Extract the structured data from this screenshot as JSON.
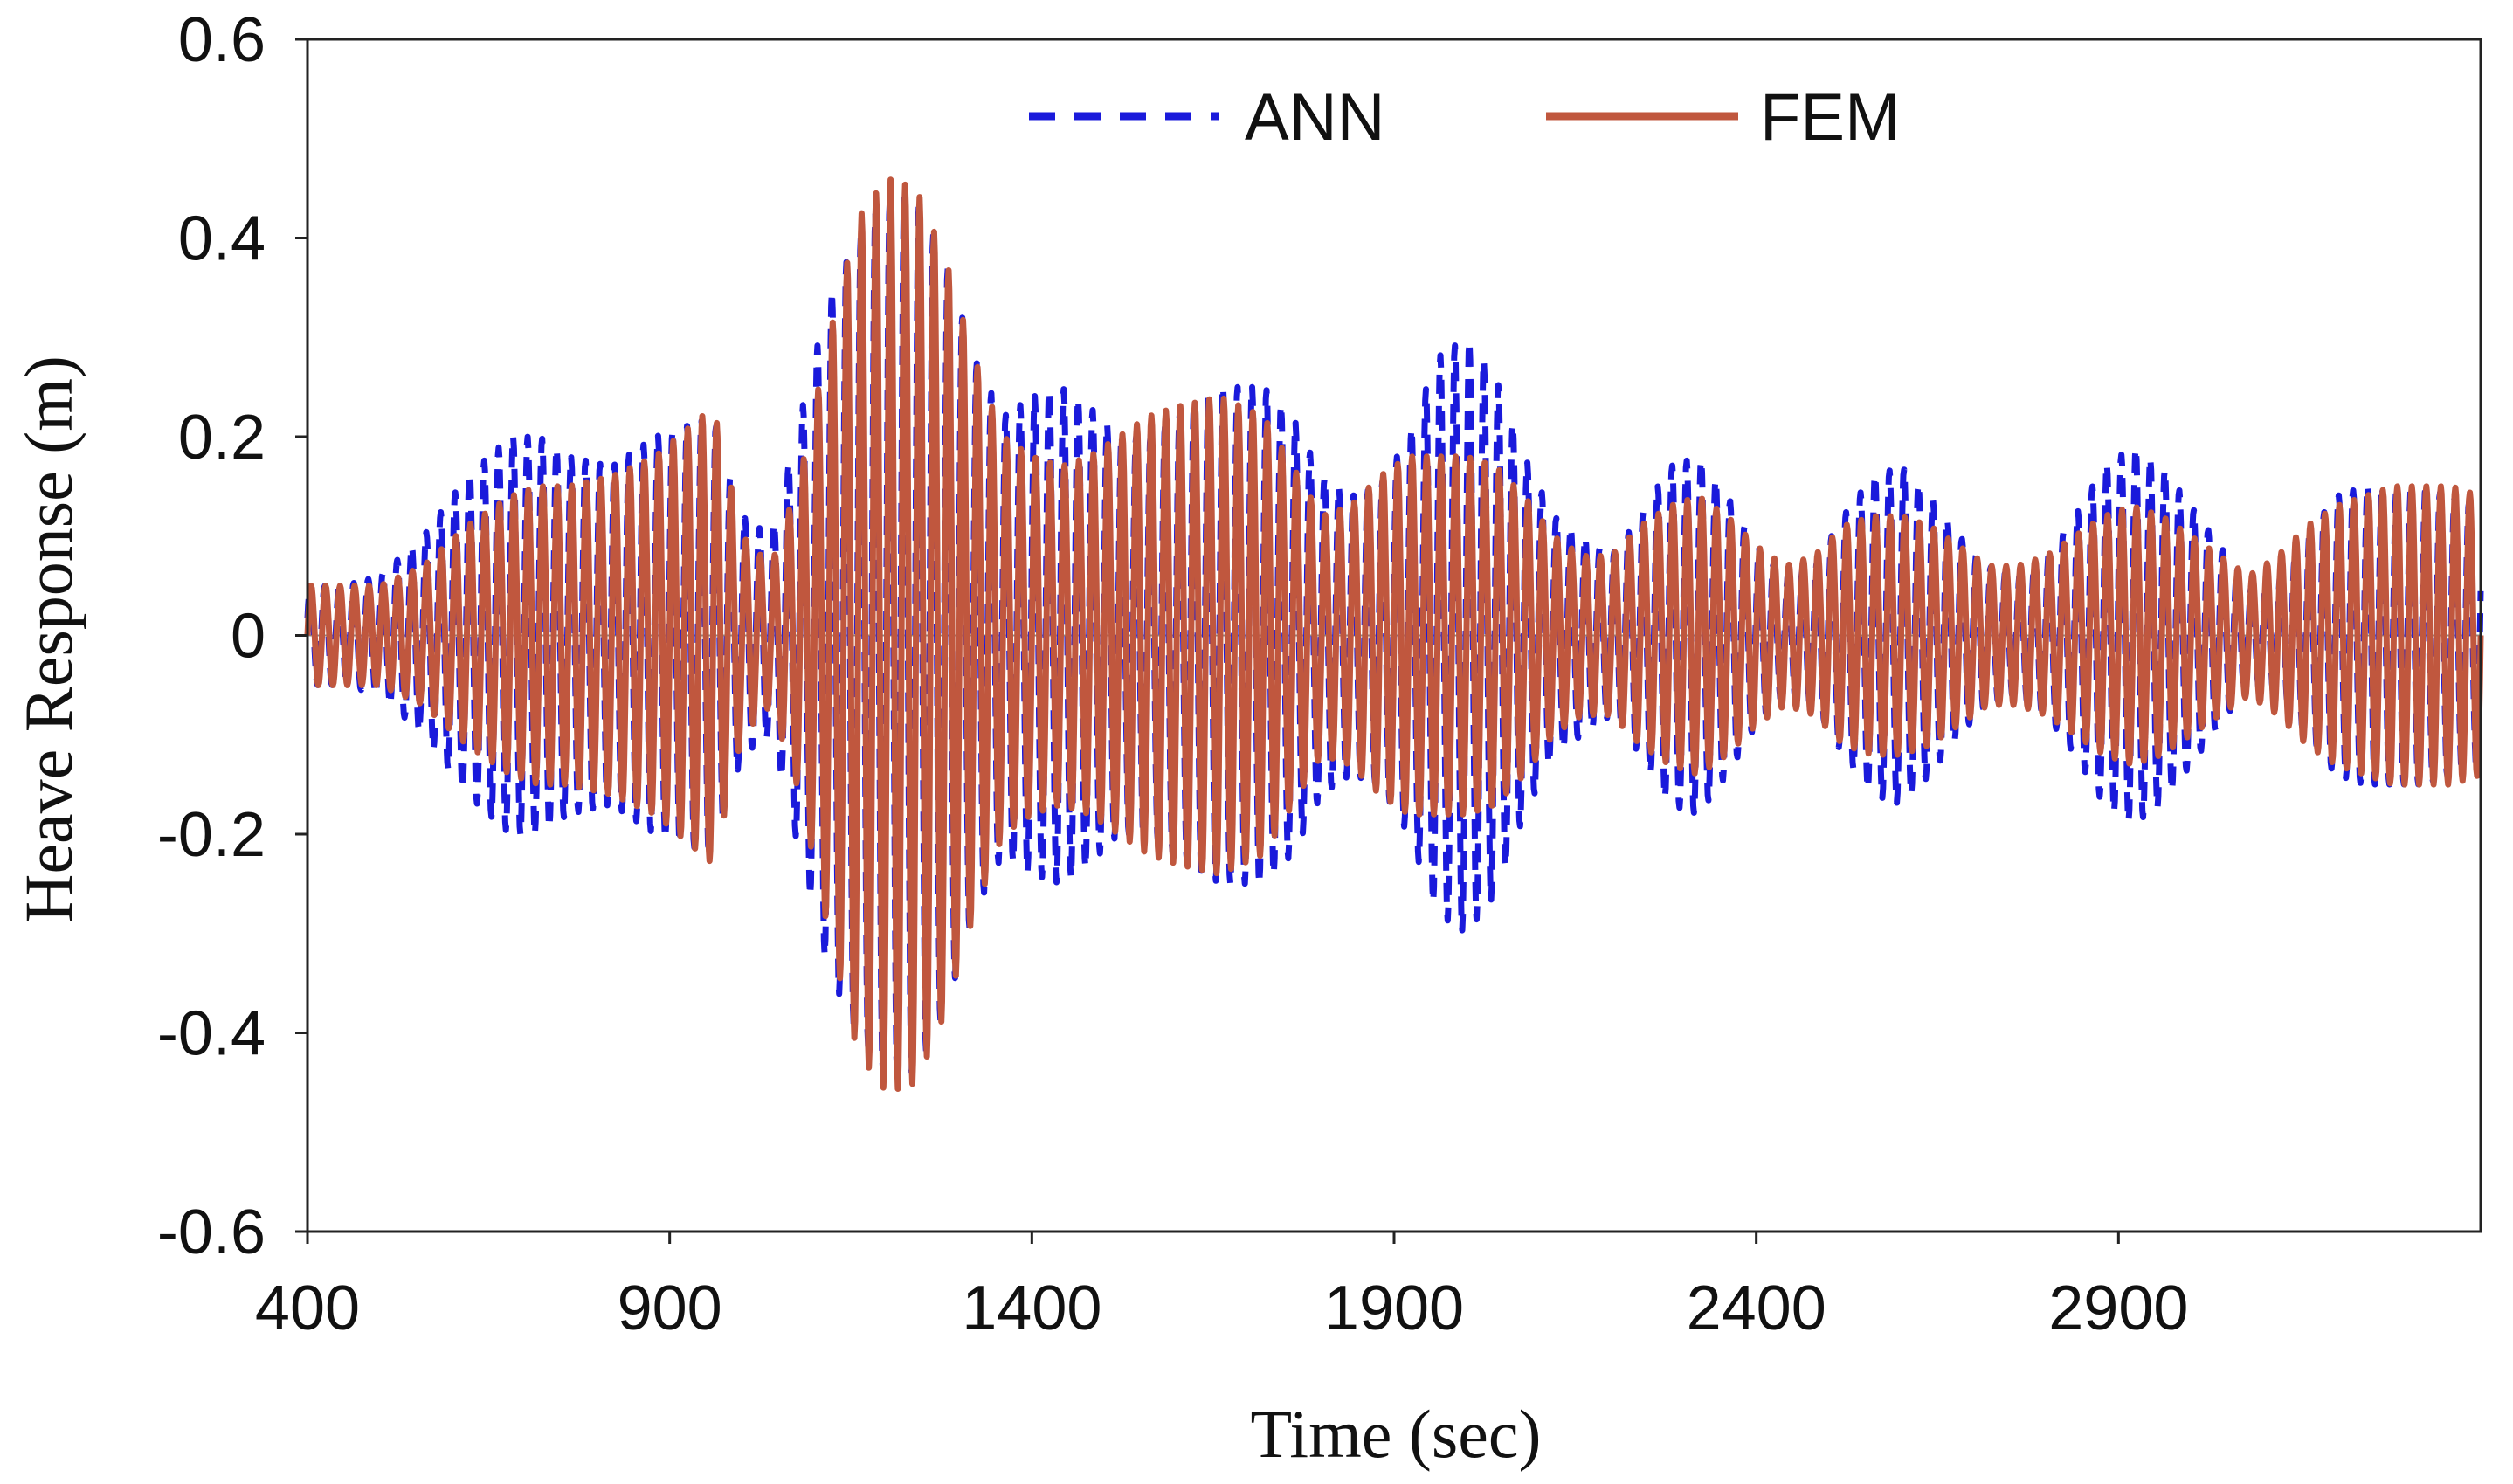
{
  "chart_data": {
    "type": "line",
    "title": "",
    "xlabel": "Time (sec)",
    "ylabel": "Heave Response (m)",
    "xlim": [
      400,
      3400
    ],
    "ylim": [
      -0.6,
      0.6
    ],
    "xticks": [
      400,
      900,
      1400,
      1900,
      2400,
      2900
    ],
    "xtick_labels": [
      "400",
      "900",
      "1400",
      "1900",
      "2400",
      "2900"
    ],
    "yticks": [
      0.6,
      0.4,
      0.2,
      0,
      -0.2,
      -0.4,
      -0.6
    ],
    "ytick_labels": [
      "0.6",
      "0.4",
      "0.2",
      "0",
      "-0.2",
      "-0.4",
      "-0.6"
    ],
    "grid": false,
    "legend_position": "top-center",
    "oscillation_period_sec": 20,
    "series": [
      {
        "name": "ANN",
        "color": "#1a1adb",
        "style": "dashed",
        "envelope": {
          "t": [
            400,
            450,
            500,
            560,
            620,
            680,
            720,
            760,
            820,
            880,
            960,
            1000,
            1040,
            1080,
            1120,
            1160,
            1200,
            1240,
            1280,
            1320,
            1360,
            1400,
            1440,
            1480,
            1520,
            1560,
            1600,
            1660,
            1720,
            1760,
            1800,
            1840,
            1880,
            1920,
            1960,
            2000,
            2040,
            2080,
            2120,
            2160,
            2200,
            2240,
            2280,
            2320,
            2360,
            2400,
            2440,
            2480,
            2520,
            2560,
            2600,
            2640,
            2680,
            2720,
            2760,
            2800,
            2840,
            2880,
            2920,
            2960,
            3000,
            3040,
            3080,
            3120,
            3160,
            3200,
            3240,
            3280,
            3320,
            3360,
            3400
          ],
          "amplitude": [
            0.05,
            0.05,
            0.06,
            0.1,
            0.16,
            0.2,
            0.2,
            0.18,
            0.17,
            0.2,
            0.22,
            0.12,
            0.1,
            0.22,
            0.34,
            0.4,
            0.44,
            0.44,
            0.38,
            0.28,
            0.22,
            0.24,
            0.25,
            0.23,
            0.2,
            0.2,
            0.22,
            0.25,
            0.25,
            0.22,
            0.16,
            0.14,
            0.15,
            0.2,
            0.28,
            0.3,
            0.26,
            0.18,
            0.12,
            0.1,
            0.08,
            0.12,
            0.17,
            0.18,
            0.14,
            0.09,
            0.06,
            0.07,
            0.12,
            0.16,
            0.17,
            0.14,
            0.1,
            0.07,
            0.06,
            0.08,
            0.12,
            0.17,
            0.19,
            0.17,
            0.13,
            0.09,
            0.05,
            0.06,
            0.1,
            0.14,
            0.15,
            0.15,
            0.15,
            0.14,
            0.13
          ]
        }
      },
      {
        "name": "FEM",
        "color": "#c0573e",
        "style": "solid",
        "envelope": {
          "t": [
            400,
            450,
            500,
            560,
            620,
            680,
            720,
            760,
            820,
            880,
            960,
            1000,
            1040,
            1080,
            1120,
            1160,
            1200,
            1240,
            1280,
            1320,
            1360,
            1400,
            1440,
            1480,
            1520,
            1560,
            1600,
            1660,
            1720,
            1760,
            1800,
            1840,
            1880,
            1920,
            1960,
            2000,
            2040,
            2080,
            2120,
            2160,
            2200,
            2240,
            2280,
            2320,
            2360,
            2400,
            2440,
            2480,
            2520,
            2560,
            2600,
            2640,
            2680,
            2720,
            2760,
            2800,
            2840,
            2880,
            2920,
            2960,
            3000,
            3040,
            3080,
            3120,
            3160,
            3200,
            3240,
            3280,
            3320,
            3360,
            3400
          ],
          "amplitude": [
            0.05,
            0.05,
            0.05,
            0.07,
            0.11,
            0.14,
            0.15,
            0.15,
            0.16,
            0.18,
            0.23,
            0.1,
            0.07,
            0.16,
            0.3,
            0.42,
            0.46,
            0.45,
            0.38,
            0.28,
            0.2,
            0.18,
            0.17,
            0.18,
            0.2,
            0.22,
            0.23,
            0.24,
            0.22,
            0.17,
            0.12,
            0.13,
            0.16,
            0.18,
            0.18,
            0.18,
            0.17,
            0.14,
            0.1,
            0.08,
            0.08,
            0.11,
            0.13,
            0.14,
            0.12,
            0.09,
            0.07,
            0.08,
            0.11,
            0.12,
            0.12,
            0.11,
            0.09,
            0.07,
            0.07,
            0.08,
            0.1,
            0.12,
            0.13,
            0.12,
            0.1,
            0.08,
            0.06,
            0.08,
            0.11,
            0.13,
            0.14,
            0.15,
            0.15,
            0.15,
            0.14
          ]
        }
      }
    ]
  }
}
